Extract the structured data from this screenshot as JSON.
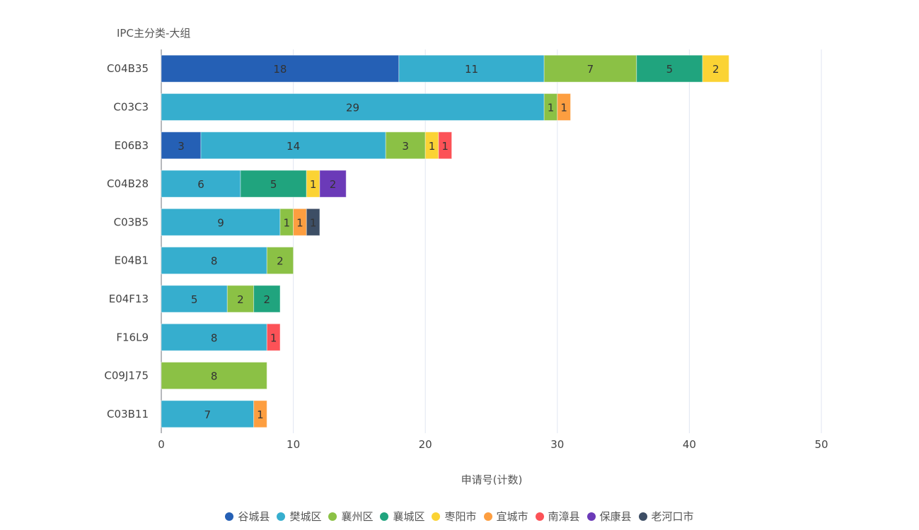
{
  "chart_data": {
    "type": "bar",
    "orientation": "horizontal",
    "stacked": true,
    "ylabel": "IPC主分类-大组",
    "xlabel": "申请号(计数)",
    "xlim": [
      0,
      50
    ],
    "xticks": [
      0,
      10,
      20,
      30,
      40,
      50
    ],
    "grid": true,
    "legend_position": "bottom",
    "categories": [
      "C04B35",
      "C03C3",
      "E06B3",
      "C04B28",
      "C03B5",
      "E04B1",
      "E04F13",
      "F16L9",
      "C09J175",
      "C03B11"
    ],
    "series": [
      {
        "name": "谷城县",
        "color": "#2560B5",
        "values": [
          18,
          0,
          3,
          0,
          0,
          0,
          0,
          0,
          0,
          0
        ]
      },
      {
        "name": "樊城区",
        "color": "#36AECE",
        "values": [
          11,
          29,
          14,
          6,
          9,
          8,
          5,
          8,
          0,
          7
        ]
      },
      {
        "name": "襄州区",
        "color": "#8BC145",
        "values": [
          7,
          1,
          3,
          0,
          1,
          2,
          2,
          0,
          8,
          0
        ]
      },
      {
        "name": "襄城区",
        "color": "#20A47E",
        "values": [
          5,
          0,
          0,
          5,
          0,
          0,
          2,
          0,
          0,
          0
        ]
      },
      {
        "name": "枣阳市",
        "color": "#FBD334",
        "values": [
          2,
          0,
          1,
          1,
          0,
          0,
          0,
          0,
          0,
          0
        ]
      },
      {
        "name": "宜城市",
        "color": "#FD9E40",
        "values": [
          0,
          1,
          0,
          0,
          1,
          0,
          0,
          0,
          0,
          1
        ]
      },
      {
        "name": "南漳县",
        "color": "#FC5257",
        "values": [
          0,
          0,
          1,
          0,
          0,
          0,
          0,
          1,
          0,
          0
        ]
      },
      {
        "name": "保康县",
        "color": "#6B3AB8",
        "values": [
          0,
          0,
          0,
          2,
          0,
          0,
          0,
          0,
          0,
          0
        ]
      },
      {
        "name": "老河口市",
        "color": "#3D4E65",
        "values": [
          0,
          0,
          0,
          0,
          1,
          0,
          0,
          0,
          0,
          0
        ]
      }
    ]
  }
}
